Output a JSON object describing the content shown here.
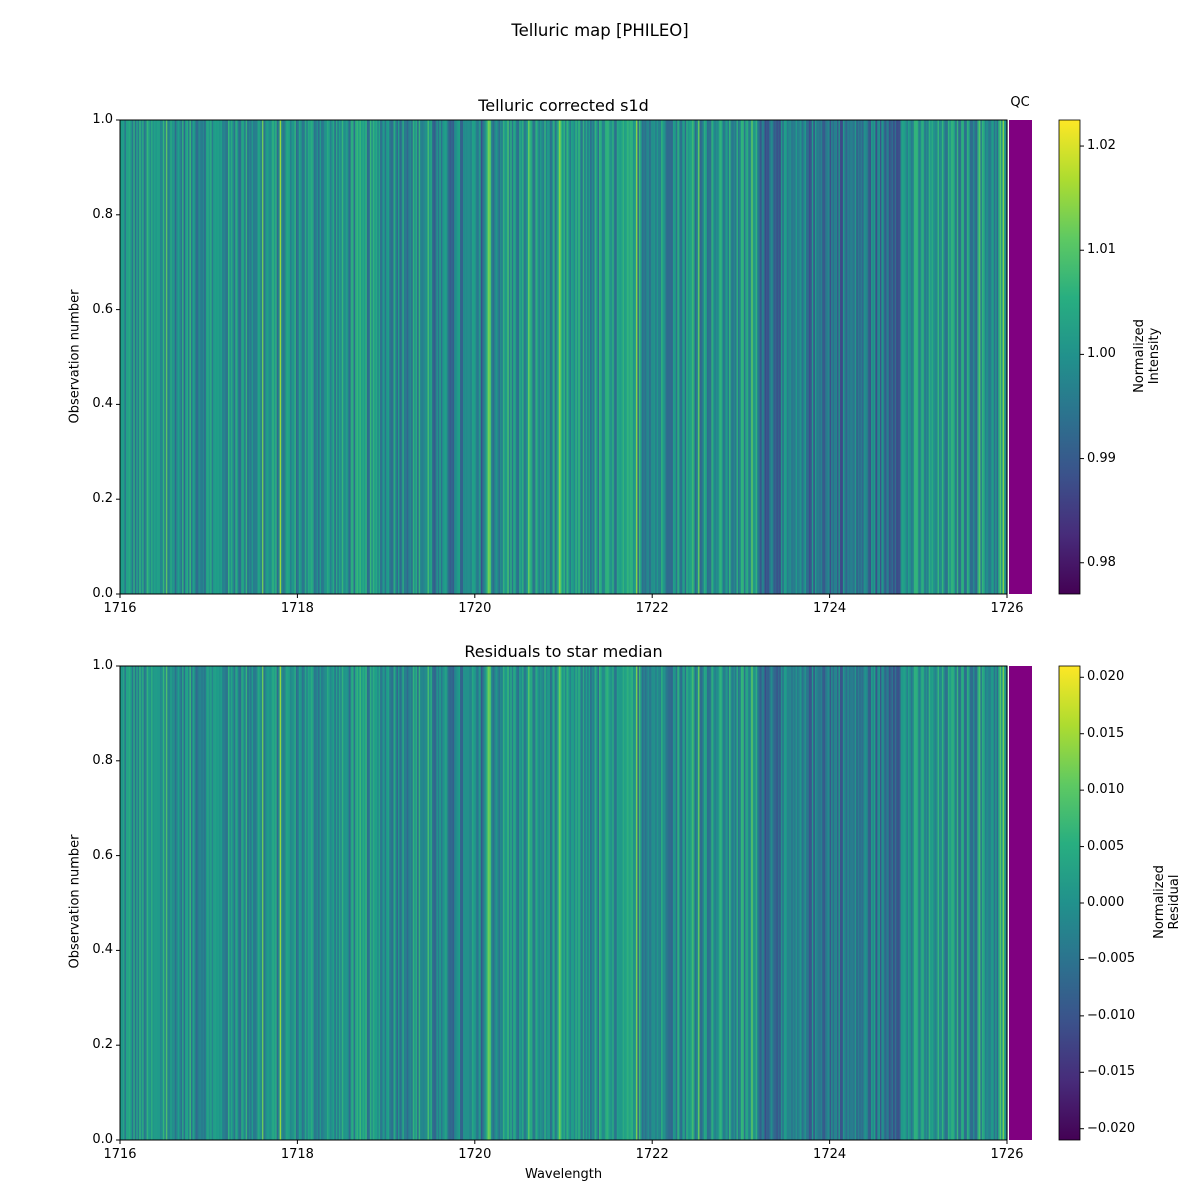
{
  "figure": {
    "title": "Telluric map [PHILEO]",
    "qc_label": "QC",
    "qc_color": "#800080"
  },
  "chart_data": [
    {
      "type": "heatmap",
      "title": "Telluric corrected s1d",
      "xlabel": "",
      "ylabel": "Observation number",
      "xlim": [
        1716,
        1726
      ],
      "ylim": [
        0,
        1
      ],
      "x_ticks": [
        "1716",
        "1718",
        "1720",
        "1722",
        "1724",
        "1726"
      ],
      "y_ticks": [
        "0.0",
        "0.2",
        "0.4",
        "0.6",
        "0.8",
        "1.0"
      ],
      "colormap": "viridis",
      "colorbar": {
        "label_line1": "Normalized",
        "label_line2": "Intensity",
        "range": [
          0.977,
          1.0225
        ],
        "ticks": [
          "0.98",
          "0.99",
          "1.00",
          "1.01",
          "1.02"
        ],
        "tick_values": [
          0.98,
          0.99,
          1.0,
          1.01,
          1.02
        ]
      },
      "qc": "pass"
    },
    {
      "type": "heatmap",
      "title": "Residuals to star median",
      "xlabel": "Wavelength",
      "ylabel": "Observation number",
      "xlim": [
        1716,
        1726
      ],
      "ylim": [
        0,
        1
      ],
      "x_ticks": [
        "1716",
        "1718",
        "1720",
        "1722",
        "1724",
        "1726"
      ],
      "y_ticks": [
        "0.0",
        "0.2",
        "0.4",
        "0.6",
        "0.8",
        "1.0"
      ],
      "colormap": "viridis",
      "colorbar": {
        "label_line1": "Normalized",
        "label_line2": "Residual",
        "range": [
          -0.021,
          0.021
        ],
        "ticks": [
          "0.020",
          "0.015",
          "0.010",
          "0.005",
          "0.000",
          "−0.005",
          "−0.010",
          "−0.015",
          "−0.020"
        ],
        "tick_values": [
          0.02,
          0.015,
          0.01,
          0.005,
          0.0,
          -0.005,
          -0.01,
          -0.015,
          -0.02
        ]
      },
      "qc": "pass"
    }
  ]
}
